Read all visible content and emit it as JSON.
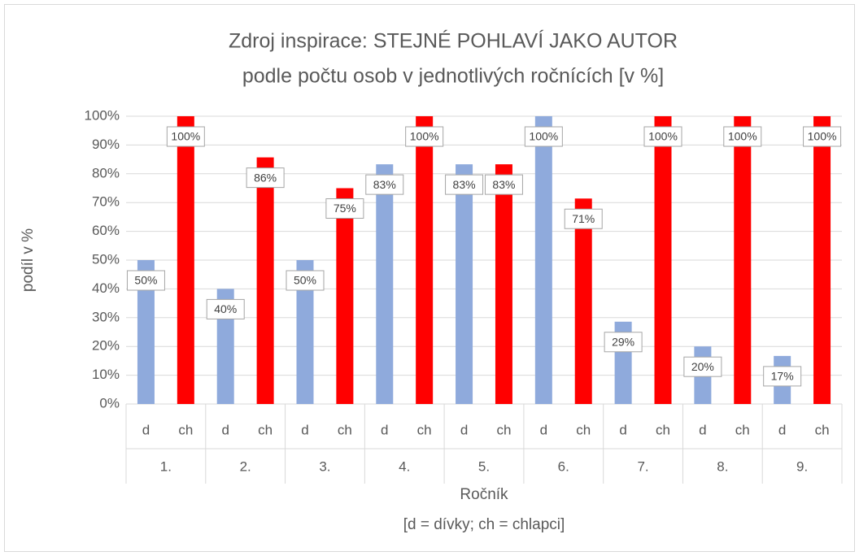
{
  "chart_data": {
    "type": "bar",
    "title": [
      "Zdroj inspirace: STEJNÉ POHLAVÍ JAKO AUTOR",
      "podle počtu osob v jednotlivých ročnících [v %]"
    ],
    "ylabel": "podíl  v %",
    "xlabel": [
      "Ročník",
      "[d = dívky; ch = chlapci]"
    ],
    "categories": [
      "1.",
      "2.",
      "3.",
      "4.",
      "5.",
      "6.",
      "7.",
      "8.",
      "9."
    ],
    "series": [
      {
        "name": "d",
        "color": "#8faadc",
        "values": [
          50,
          40,
          50,
          83.3,
          83.3,
          100,
          28.6,
          20,
          16.7
        ],
        "value_labels": [
          "50%",
          "40%",
          "50%",
          "83%",
          "83%",
          "100%",
          "29%",
          "20%",
          "17%"
        ]
      },
      {
        "name": "ch",
        "color": "#ff0000",
        "values": [
          100,
          85.7,
          75,
          100,
          83.3,
          71.4,
          100,
          100,
          100
        ],
        "value_labels": [
          "100%",
          "86%",
          "75%",
          "100%",
          "83%",
          "71%",
          "100%",
          "100%",
          "100%"
        ]
      }
    ],
    "ylim": [
      0,
      100
    ],
    "yticks": [
      {
        "value": 0,
        "label": "0%"
      },
      {
        "value": 10,
        "label": "10%"
      },
      {
        "value": 20,
        "label": "20%"
      },
      {
        "value": 30,
        "label": "30%"
      },
      {
        "value": 40,
        "label": "40%"
      },
      {
        "value": 50,
        "label": "50%"
      },
      {
        "value": 60,
        "label": "60%"
      },
      {
        "value": 70,
        "label": "70%"
      },
      {
        "value": 80,
        "label": "80%"
      },
      {
        "value": 90,
        "label": "90%"
      },
      {
        "value": 100,
        "label": "100%"
      }
    ],
    "grid": true
  }
}
